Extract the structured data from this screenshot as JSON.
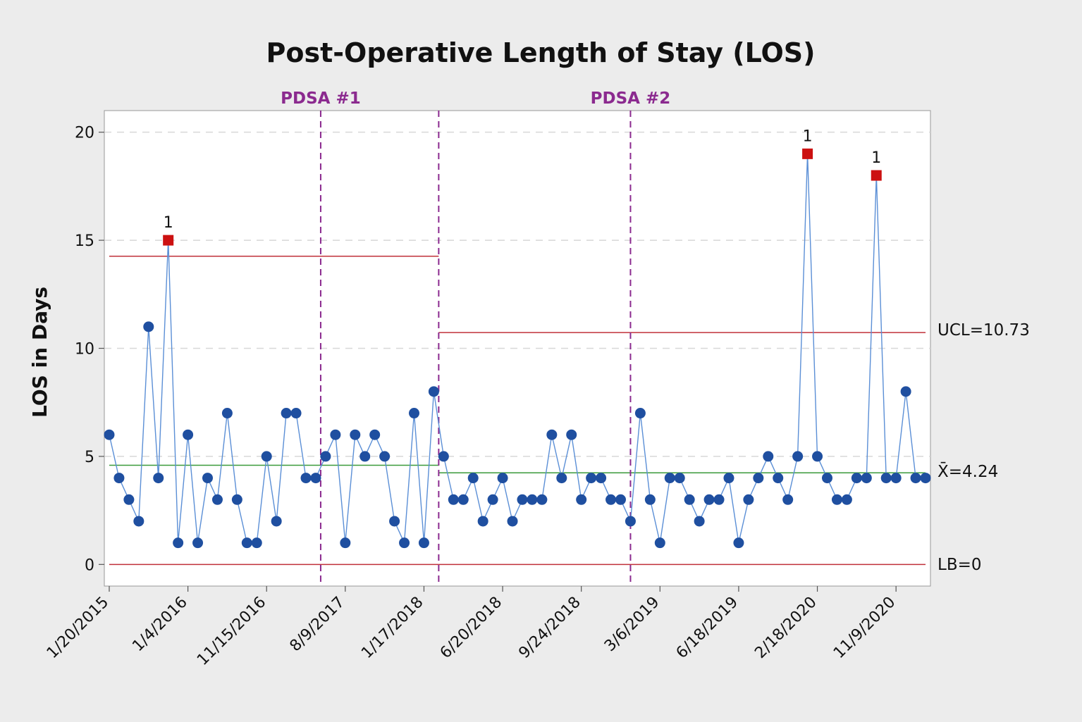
{
  "chart_data": {
    "type": "line",
    "title": "Post-Operative Length of Stay (LOS)",
    "xlabel": "",
    "ylabel": "LOS in Days",
    "ylim": [
      -1,
      21
    ],
    "yticks": [
      0,
      5,
      10,
      15,
      20
    ],
    "grid": true,
    "x_tick_labels": [
      {
        "index": 1,
        "label": "1/20/2015"
      },
      {
        "index": 9,
        "label": "1/4/2016"
      },
      {
        "index": 17,
        "label": "11/15/2016"
      },
      {
        "index": 25,
        "label": "8/9/2017"
      },
      {
        "index": 33,
        "label": "1/17/2018"
      },
      {
        "index": 41,
        "label": "6/20/2018"
      },
      {
        "index": 49,
        "label": "9/24/2018"
      },
      {
        "index": 57,
        "label": "3/6/2019"
      },
      {
        "index": 65,
        "label": "6/18/2019"
      },
      {
        "index": 73,
        "label": "2/18/2020"
      },
      {
        "index": 81,
        "label": "11/9/2020"
      }
    ],
    "values": [
      6,
      4,
      3,
      2,
      11,
      4,
      15,
      1,
      6,
      1,
      4,
      3,
      7,
      3,
      1,
      1,
      5,
      2,
      7,
      7,
      4,
      4,
      5,
      6,
      1,
      6,
      5,
      6,
      5,
      2,
      1,
      7,
      1,
      8,
      5,
      3,
      3,
      4,
      2,
      3,
      4,
      2,
      3,
      3,
      3,
      6,
      4,
      6,
      3,
      4,
      4,
      3,
      3,
      2,
      7,
      3,
      1,
      4,
      4,
      3,
      2,
      3,
      3,
      4,
      1,
      3,
      4,
      5,
      4,
      3,
      5,
      19,
      5,
      4,
      3,
      3,
      4,
      4,
      18,
      4,
      4,
      8,
      4,
      4
    ],
    "out_of_control": [
      {
        "index": 7,
        "value": 15,
        "label": "1"
      },
      {
        "index": 72,
        "value": 19,
        "label": "1"
      },
      {
        "index": 79,
        "value": 18,
        "label": "1"
      }
    ],
    "phases": [
      {
        "start": 1,
        "end": 34.5,
        "center": 4.59,
        "ucl": 14.26,
        "lcl": 0
      },
      {
        "start": 34.5,
        "end": 84.5,
        "center": 4.24,
        "ucl": 10.73,
        "lcl": 0
      }
    ],
    "annotations": {
      "ucl_label": "UCL=10.73",
      "center_label": "X̄=4.24",
      "lb_label": "LB=0"
    },
    "phase_markers": [
      {
        "at": 22.5,
        "label": "PDSA #1"
      },
      {
        "at": 34.5,
        "label": ""
      },
      {
        "at": 54.0,
        "label": "PDSA #2"
      }
    ],
    "colors": {
      "series": "#1f4fa0",
      "series_line": "#5b8fd6",
      "flag": "#cc1111",
      "limit": "#c0303a",
      "center": "#3a9a3a",
      "phase": "#8b2a8f",
      "grid": "#d8d8d8",
      "plot_bg": "#ffffff",
      "page_bg": "#ececec"
    }
  }
}
